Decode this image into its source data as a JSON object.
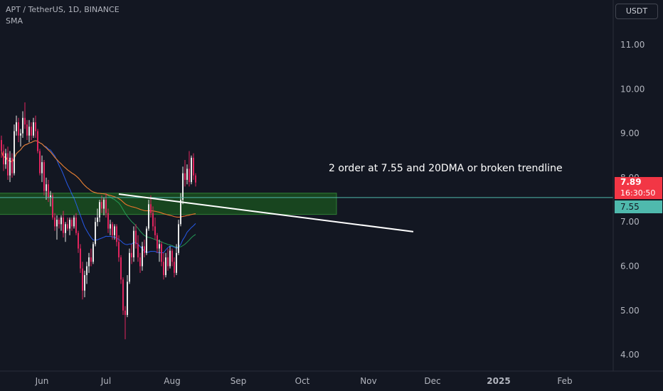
{
  "header": {
    "symbol_line": "APT / TetherUS, 1D, BINANCE",
    "indicator": "SMA"
  },
  "currency_label": "USDT",
  "annotation": "2 order at 7.55 and 20DMA or broken trendline",
  "price_tags": {
    "last_price": "7.89",
    "countdown": "16:30:50",
    "level": "7.55"
  },
  "colors": {
    "background": "#131722",
    "up_candle": "#e8e8e8",
    "down_candle": "#e0245e",
    "zone": "#1a4d1f",
    "level_line": "#4fb9ad",
    "last_tag": "#f23645"
  },
  "chart_data": {
    "type": "candlestick",
    "ylim": [
      3.5,
      12.2
    ],
    "yticks": [
      "11.00",
      "10.00",
      "9.00",
      "8.00",
      "7.00",
      "6.00",
      "5.00",
      "4.00"
    ],
    "ytick_values": [
      11,
      10,
      9,
      8,
      7,
      6,
      5,
      4
    ],
    "xticks": [
      {
        "label": "Jun",
        "day": 19
      },
      {
        "label": "Jul",
        "day": 49
      },
      {
        "label": "Aug",
        "day": 80
      },
      {
        "label": "Sep",
        "day": 111
      },
      {
        "label": "Oct",
        "day": 141
      },
      {
        "label": "Nov",
        "day": 172
      },
      {
        "label": "Dec",
        "day": 202
      },
      {
        "label": "2025",
        "day": 233
      },
      {
        "label": "Feb",
        "day": 264
      }
    ],
    "candles": [
      [
        8.85,
        8.95,
        8.45,
        8.6
      ],
      [
        8.6,
        8.75,
        8.15,
        8.3
      ],
      [
        8.3,
        8.65,
        8.2,
        8.55
      ],
      [
        8.55,
        8.7,
        7.95,
        8.05
      ],
      [
        8.05,
        8.6,
        7.9,
        8.45
      ],
      [
        8.45,
        8.55,
        8.0,
        8.1
      ],
      [
        8.1,
        9.2,
        8.05,
        9.05
      ],
      [
        9.05,
        9.4,
        8.95,
        9.25
      ],
      [
        9.25,
        9.35,
        8.8,
        8.95
      ],
      [
        8.95,
        9.1,
        8.7,
        9.0
      ],
      [
        9.0,
        9.5,
        8.9,
        9.35
      ],
      [
        9.35,
        9.7,
        9.1,
        9.2
      ],
      [
        9.2,
        9.3,
        8.85,
        8.95
      ],
      [
        8.95,
        9.3,
        8.8,
        9.15
      ],
      [
        9.15,
        9.25,
        8.85,
        8.95
      ],
      [
        8.95,
        9.35,
        8.9,
        9.25
      ],
      [
        9.25,
        9.4,
        8.9,
        9.05
      ],
      [
        9.05,
        9.1,
        8.55,
        8.6
      ],
      [
        8.6,
        8.65,
        8.05,
        8.1
      ],
      [
        8.1,
        8.5,
        7.9,
        8.35
      ],
      [
        8.35,
        8.4,
        7.6,
        7.7
      ],
      [
        7.7,
        8.0,
        7.5,
        7.85
      ],
      [
        7.85,
        7.95,
        7.45,
        7.55
      ],
      [
        7.55,
        7.7,
        7.35,
        7.6
      ],
      [
        7.6,
        7.65,
        7.05,
        7.1
      ],
      [
        7.1,
        7.2,
        6.8,
        6.9
      ],
      [
        6.9,
        7.15,
        6.6,
        7.05
      ],
      [
        7.05,
        7.1,
        6.85,
        6.95
      ],
      [
        6.95,
        7.15,
        6.8,
        7.1
      ],
      [
        7.1,
        7.25,
        6.65,
        6.75
      ],
      [
        6.75,
        7.0,
        6.55,
        6.95
      ],
      [
        6.95,
        7.1,
        6.8,
        6.85
      ],
      [
        6.85,
        7.1,
        6.7,
        7.05
      ],
      [
        7.05,
        7.1,
        6.8,
        6.9
      ],
      [
        6.9,
        7.15,
        6.85,
        7.1
      ],
      [
        7.1,
        7.2,
        6.7,
        6.75
      ],
      [
        6.75,
        6.8,
        6.3,
        6.4
      ],
      [
        6.4,
        6.5,
        5.85,
        5.95
      ],
      [
        5.95,
        6.1,
        5.25,
        5.45
      ],
      [
        5.45,
        5.9,
        5.3,
        5.8
      ],
      [
        5.8,
        6.1,
        5.6,
        6.0
      ],
      [
        6.0,
        6.3,
        5.85,
        6.2
      ],
      [
        6.2,
        6.4,
        6.0,
        6.1
      ],
      [
        6.1,
        6.55,
        6.05,
        6.5
      ],
      [
        6.5,
        7.1,
        6.45,
        7.0
      ],
      [
        7.0,
        7.3,
        6.9,
        7.1
      ],
      [
        7.1,
        7.5,
        7.0,
        7.45
      ],
      [
        7.45,
        7.6,
        7.2,
        7.3
      ],
      [
        7.3,
        7.55,
        7.15,
        7.5
      ],
      [
        7.5,
        7.65,
        7.1,
        7.2
      ],
      [
        7.2,
        7.3,
        6.75,
        6.85
      ],
      [
        6.85,
        7.05,
        6.7,
        6.95
      ],
      [
        6.95,
        7.0,
        6.6,
        6.7
      ],
      [
        6.7,
        6.95,
        6.6,
        6.9
      ],
      [
        6.9,
        6.95,
        6.45,
        6.55
      ],
      [
        6.55,
        6.7,
        6.1,
        6.2
      ],
      [
        6.2,
        6.25,
        5.6,
        5.7
      ],
      [
        5.7,
        5.75,
        4.9,
        5.0
      ],
      [
        5.0,
        5.1,
        4.35,
        4.9
      ],
      [
        4.9,
        5.8,
        4.85,
        5.65
      ],
      [
        5.65,
        6.4,
        5.6,
        6.3
      ],
      [
        6.3,
        6.5,
        6.05,
        6.2
      ],
      [
        6.2,
        6.9,
        6.1,
        6.8
      ],
      [
        6.8,
        6.95,
        6.4,
        6.5
      ],
      [
        6.5,
        6.7,
        6.1,
        6.2
      ],
      [
        6.2,
        6.3,
        5.85,
        6.0
      ],
      [
        6.0,
        6.55,
        5.9,
        6.45
      ],
      [
        6.45,
        6.6,
        6.2,
        6.3
      ],
      [
        6.3,
        6.9,
        6.25,
        6.85
      ],
      [
        6.85,
        7.5,
        6.8,
        7.4
      ],
      [
        7.4,
        7.6,
        7.1,
        7.2
      ],
      [
        7.2,
        7.35,
        6.8,
        6.9
      ],
      [
        6.9,
        7.1,
        6.6,
        6.7
      ],
      [
        6.7,
        6.75,
        6.3,
        6.4
      ],
      [
        6.4,
        6.6,
        6.1,
        6.5
      ],
      [
        6.5,
        6.55,
        6.0,
        6.1
      ],
      [
        6.1,
        6.3,
        5.7,
        5.8
      ],
      [
        5.8,
        6.3,
        5.75,
        6.2
      ],
      [
        6.2,
        6.4,
        5.9,
        6.0
      ],
      [
        6.0,
        6.45,
        5.95,
        6.35
      ],
      [
        6.35,
        6.4,
        6.0,
        6.1
      ],
      [
        6.1,
        6.2,
        5.75,
        5.85
      ],
      [
        5.85,
        6.5,
        5.8,
        6.3
      ],
      [
        6.3,
        7.05,
        6.25,
        6.95
      ],
      [
        6.95,
        7.65,
        6.9,
        7.5
      ],
      [
        7.5,
        8.25,
        7.4,
        8.1
      ],
      [
        8.1,
        8.4,
        7.8,
        7.95
      ],
      [
        7.95,
        8.3,
        7.85,
        8.2
      ],
      [
        8.2,
        8.6,
        7.8,
        7.9
      ],
      [
        7.9,
        8.5,
        7.85,
        8.45
      ],
      [
        8.45,
        8.55,
        7.95,
        8.05
      ],
      [
        8.05,
        8.1,
        7.8,
        7.89
      ]
    ],
    "drawings": {
      "green_zone": {
        "from_day": -6,
        "to_day": 157,
        "y1": 7.17,
        "y2": 7.65
      },
      "trendline": {
        "from_day": 55,
        "y1": 7.63,
        "to_day": 193,
        "y2": 6.78
      },
      "level_line": 7.55,
      "last_price": 7.89
    }
  }
}
